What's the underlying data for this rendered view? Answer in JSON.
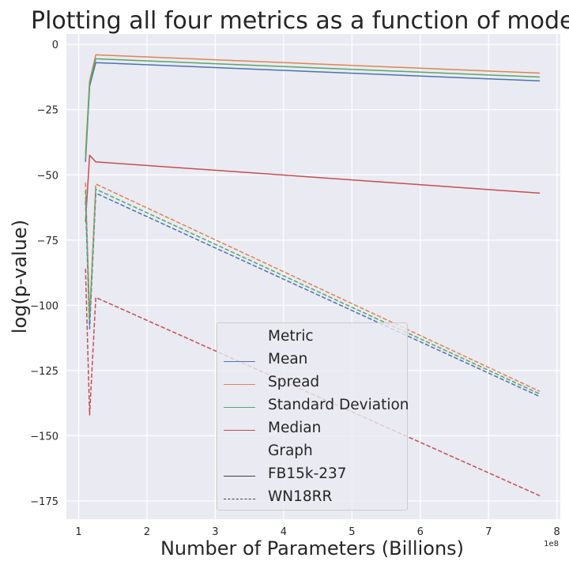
{
  "chart_data": {
    "type": "line",
    "title": "Plotting all four metrics as a function of model size",
    "xlabel": "Number of Parameters (Billions)",
    "ylabel": "log(p-value)",
    "x_offset_label": "1e8",
    "xlim": [
      0.82,
      8.05
    ],
    "ylim": [
      -182,
      4
    ],
    "xticks": [
      1,
      2,
      3,
      4,
      5,
      6,
      7,
      8
    ],
    "yticks": [
      0,
      -25,
      -50,
      -75,
      -100,
      -125,
      -150,
      -175
    ],
    "grid": true,
    "x": [
      1.1,
      1.16,
      1.25,
      7.75
    ],
    "series": [
      {
        "name": "Mean",
        "graph": "FB15k-237",
        "color": "#4c72b0",
        "dash": false,
        "values": [
          -45,
          -16,
          -7,
          -14
        ]
      },
      {
        "name": "Spread",
        "graph": "FB15k-237",
        "color": "#dd8452",
        "dash": false,
        "values": [
          -42,
          -14,
          -4,
          -11
        ]
      },
      {
        "name": "Standard Deviation",
        "graph": "FB15k-237",
        "color": "#55a868",
        "dash": false,
        "values": [
          -44,
          -15,
          -5.5,
          -12.5
        ]
      },
      {
        "name": "Median",
        "graph": "FB15k-237",
        "color": "#c44e52",
        "dash": false,
        "values": [
          -68,
          -42.5,
          -45,
          -57
        ]
      },
      {
        "name": "Mean",
        "graph": "WN18RR",
        "color": "#4c72b0",
        "dash": true,
        "values": [
          -60,
          -109,
          -57,
          -135
        ]
      },
      {
        "name": "Spread",
        "graph": "WN18RR",
        "color": "#dd8452",
        "dash": true,
        "values": [
          -53,
          -104,
          -53.5,
          -133
        ]
      },
      {
        "name": "Standard Deviation",
        "graph": "WN18RR",
        "color": "#55a868",
        "dash": true,
        "values": [
          -56,
          -106,
          -55.5,
          -134
        ]
      },
      {
        "name": "Median",
        "graph": "WN18RR",
        "color": "#c44e52",
        "dash": true,
        "values": [
          -86,
          -142,
          -97,
          -173
        ]
      }
    ],
    "legend": {
      "placement": "lower-center",
      "metric_title": "Metric",
      "metric_entries": [
        {
          "label": "Mean",
          "color": "#4c72b0"
        },
        {
          "label": "Spread",
          "color": "#dd8452"
        },
        {
          "label": "Standard Deviation",
          "color": "#55a868"
        },
        {
          "label": "Median",
          "color": "#c44e52"
        }
      ],
      "graph_title": "Graph",
      "graph_entries": [
        {
          "label": "FB15k-237",
          "dash": false
        },
        {
          "label": "WN18RR",
          "dash": true
        }
      ]
    }
  }
}
